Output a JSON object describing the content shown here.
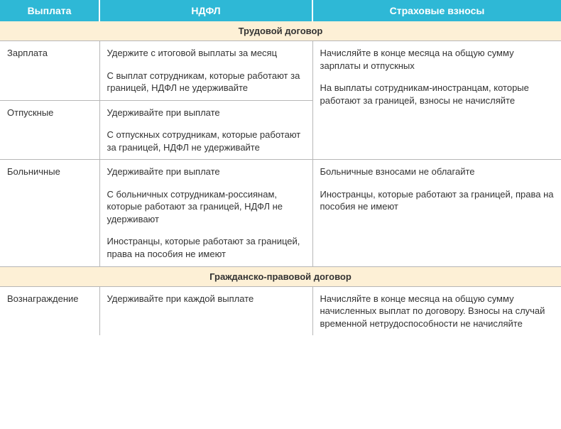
{
  "colors": {
    "header_bg": "#2eb8d6",
    "header_text": "#ffffff",
    "section_bg": "#fdf0d6",
    "border": "#b7b7b7",
    "text": "#333333"
  },
  "headers": {
    "col1": "Выплата",
    "col2": "НДФЛ",
    "col3": "Страховые взносы"
  },
  "section1": {
    "title": "Трудовой договор",
    "rows": [
      {
        "label": "Зарплата",
        "ndfl_p1": "Удержите с итоговой выплаты за месяц",
        "ndfl_p2": "С выплат сотрудникам, которые работают за границей, НДФЛ не удерживайте",
        "vznos_p1": "Начисляйте в конце месяца на общую сумму зарплаты и отпускных",
        "vznos_p2": "На выплаты сотрудникам-иностранцам, которые работают за границей, взносы не начисляйте"
      },
      {
        "label": "Отпускные",
        "ndfl_p1": "Удерживайте при выплате",
        "ndfl_p2": "С отпускных сотрудникам, которые работают за границей, НДФЛ не удерживайте"
      },
      {
        "label": "Больничные",
        "ndfl_p1": "Удерживайте при выплате",
        "ndfl_p2": "С больничных сотрудникам-россиянам, которые работают за границей, НДФЛ не удерживают",
        "ndfl_p3": "Иностранцы, которые работают за границей, права на пособия не имеют",
        "vznos_p1": "Больничные взносами не облагайте",
        "vznos_p2": "Иностранцы, которые работают за границей, права на пособия не имеют"
      }
    ]
  },
  "section2": {
    "title": "Гражданско-правовой договор",
    "rows": [
      {
        "label": "Вознаграждение",
        "ndfl_p1": "Удерживайте при каждой выплате",
        "vznos_p1": "Начисляйте в конце месяца на общую сумму начисленных выплат по договору. Взносы на случай временной нетрудоспособности не начисляйте"
      }
    ]
  }
}
